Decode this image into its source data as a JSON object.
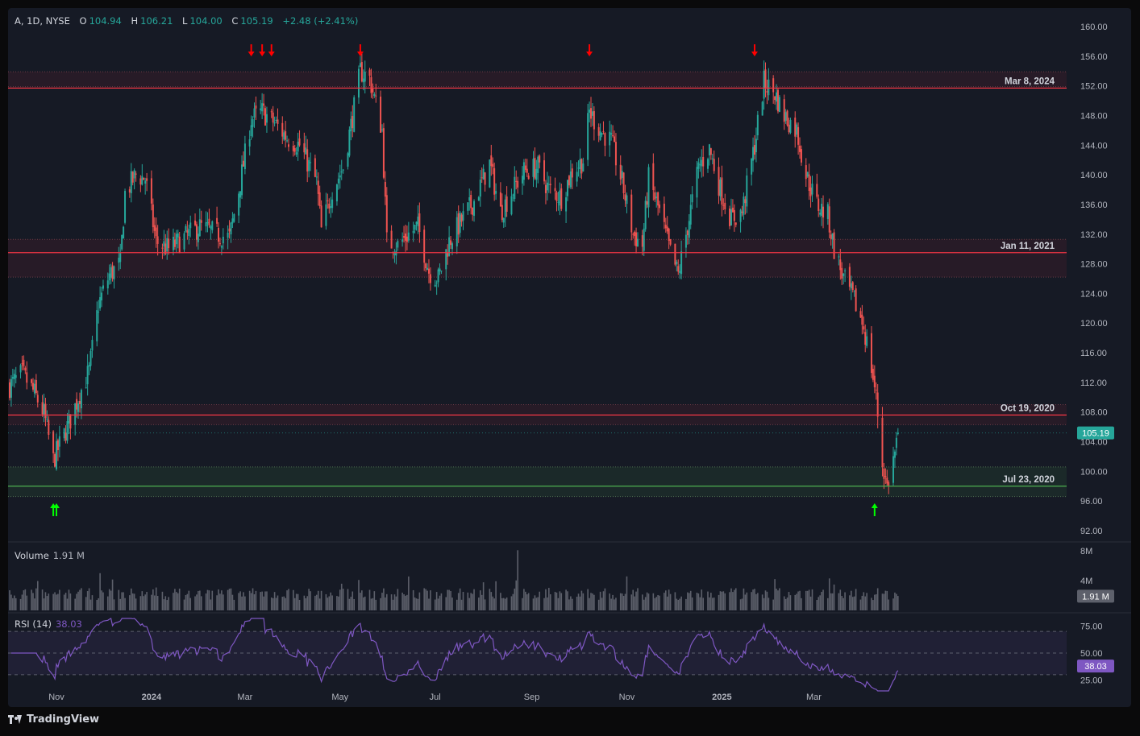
{
  "legend": {
    "symbol": "A, 1D, NYSE",
    "open_label": "O",
    "open": "104.94",
    "high_label": "H",
    "high": "106.21",
    "low_label": "L",
    "low": "104.00",
    "close_label": "C",
    "close": "105.19",
    "change": "+2.48 (+2.41%)"
  },
  "volume_legend": {
    "label": "Volume",
    "value": "1.91 M"
  },
  "rsi_legend": {
    "label": "RSI (14)",
    "value": "38.03"
  },
  "brand": "TradingView",
  "colors": {
    "up": "#26a69a",
    "down": "#ef5350",
    "resistance": "#f23645",
    "support": "#4caf50",
    "rsi": "#7e57c2",
    "arrow_down": "#ff0000",
    "arrow_up": "#00ff00"
  },
  "chart_data": [
    {
      "type": "candlestick",
      "ylim": [
        92,
        160
      ],
      "y_ticks": [
        "160.00",
        "156.00",
        "152.00",
        "148.00",
        "144.00",
        "140.00",
        "136.00",
        "132.00",
        "128.00",
        "124.00",
        "120.00",
        "116.00",
        "112.00",
        "108.00",
        "104.00",
        "100.00",
        "96.00",
        "92.00"
      ],
      "x_ticks": [
        "Nov",
        "2024",
        "Mar",
        "May",
        "Jul",
        "Sep",
        "Nov",
        "2025",
        "Mar"
      ],
      "last_price": "105.19",
      "levels": [
        {
          "label": "Mar 8, 2024",
          "price": 151.7,
          "zone": [
            151.9,
            153.9
          ],
          "kind": "resistance"
        },
        {
          "label": "Jan 11, 2021",
          "price": 129.5,
          "zone": [
            126.2,
            131.3
          ],
          "kind": "resistance"
        },
        {
          "label": "Oct 19, 2020",
          "price": 107.6,
          "zone": [
            106.3,
            109.0
          ],
          "kind": "resistance"
        },
        {
          "label": "Jul 23, 2020",
          "price": 98.0,
          "zone": [
            96.6,
            100.6
          ],
          "kind": "support"
        }
      ],
      "down_arrows": [
        "2024-03-05",
        "2024-03-12",
        "2024-03-18",
        "2024-05-14",
        "2024-10-08",
        "2025-01-22"
      ],
      "up_arrows": [
        "2023-10-30",
        "2023-11-01",
        "2025-04-09"
      ],
      "path": [
        {
          "date": "2023-10-02",
          "price": 111.5
        },
        {
          "date": "2023-10-10",
          "price": 113.2
        },
        {
          "date": "2023-10-18",
          "price": 110.5
        },
        {
          "date": "2023-10-24",
          "price": 107.8
        },
        {
          "date": "2023-10-30",
          "price": 101.5
        },
        {
          "date": "2023-11-03",
          "price": 103.5
        },
        {
          "date": "2023-11-10",
          "price": 107.0
        },
        {
          "date": "2023-11-16",
          "price": 110.5
        },
        {
          "date": "2023-11-22",
          "price": 113.5
        },
        {
          "date": "2023-11-28",
          "price": 122.5
        },
        {
          "date": "2023-12-05",
          "price": 126.5
        },
        {
          "date": "2023-12-12",
          "price": 128.0
        },
        {
          "date": "2023-12-15",
          "price": 137.5
        },
        {
          "date": "2023-12-22",
          "price": 140.0
        },
        {
          "date": "2023-12-28",
          "price": 139.5
        },
        {
          "date": "2024-01-04",
          "price": 131.0
        },
        {
          "date": "2024-01-12",
          "price": 130.0
        },
        {
          "date": "2024-01-22",
          "price": 131.5
        },
        {
          "date": "2024-02-01",
          "price": 133.0
        },
        {
          "date": "2024-02-12",
          "price": 132.0
        },
        {
          "date": "2024-02-20",
          "price": 131.5
        },
        {
          "date": "2024-02-27",
          "price": 139.0
        },
        {
          "date": "2024-03-05",
          "price": 147.5
        },
        {
          "date": "2024-03-12",
          "price": 148.5
        },
        {
          "date": "2024-03-20",
          "price": 147.0
        },
        {
          "date": "2024-03-28",
          "price": 145.0
        },
        {
          "date": "2024-04-05",
          "price": 144.0
        },
        {
          "date": "2024-04-16",
          "price": 139.0
        },
        {
          "date": "2024-04-19",
          "price": 132.5
        },
        {
          "date": "2024-04-26",
          "price": 138.0
        },
        {
          "date": "2024-05-03",
          "price": 141.0
        },
        {
          "date": "2024-05-10",
          "price": 149.0
        },
        {
          "date": "2024-05-14",
          "price": 154.0
        },
        {
          "date": "2024-05-20",
          "price": 153.0
        },
        {
          "date": "2024-05-28",
          "price": 146.0
        },
        {
          "date": "2024-05-31",
          "price": 131.0
        },
        {
          "date": "2024-06-07",
          "price": 130.5
        },
        {
          "date": "2024-06-14",
          "price": 132.0
        },
        {
          "date": "2024-06-20",
          "price": 133.0
        },
        {
          "date": "2024-06-27",
          "price": 127.0
        },
        {
          "date": "2024-07-03",
          "price": 126.0
        },
        {
          "date": "2024-07-10",
          "price": 131.0
        },
        {
          "date": "2024-07-17",
          "price": 133.5
        },
        {
          "date": "2024-07-26",
          "price": 136.5
        },
        {
          "date": "2024-08-05",
          "price": 141.5
        },
        {
          "date": "2024-08-12",
          "price": 135.0
        },
        {
          "date": "2024-08-20",
          "price": 138.0
        },
        {
          "date": "2024-08-27",
          "price": 140.5
        },
        {
          "date": "2024-09-05",
          "price": 141.0
        },
        {
          "date": "2024-09-12",
          "price": 138.0
        },
        {
          "date": "2024-09-20",
          "price": 137.0
        },
        {
          "date": "2024-09-27",
          "price": 140.5
        },
        {
          "date": "2024-10-04",
          "price": 142.0
        },
        {
          "date": "2024-10-08",
          "price": 148.5
        },
        {
          "date": "2024-10-15",
          "price": 146.0
        },
        {
          "date": "2024-10-22",
          "price": 144.5
        },
        {
          "date": "2024-10-29",
          "price": 139.0
        },
        {
          "date": "2024-11-05",
          "price": 132.0
        },
        {
          "date": "2024-11-11",
          "price": 130.5
        },
        {
          "date": "2024-11-15",
          "price": 139.5
        },
        {
          "date": "2024-11-22",
          "price": 135.0
        },
        {
          "date": "2024-11-29",
          "price": 129.5
        },
        {
          "date": "2024-12-04",
          "price": 126.5
        },
        {
          "date": "2024-12-10",
          "price": 133.0
        },
        {
          "date": "2024-12-17",
          "price": 141.0
        },
        {
          "date": "2024-12-24",
          "price": 143.5
        },
        {
          "date": "2024-12-31",
          "price": 138.0
        },
        {
          "date": "2025-01-07",
          "price": 134.0
        },
        {
          "date": "2025-01-14",
          "price": 135.0
        },
        {
          "date": "2025-01-22",
          "price": 144.0
        },
        {
          "date": "2025-01-28",
          "price": 152.5
        },
        {
          "date": "2025-02-04",
          "price": 151.0
        },
        {
          "date": "2025-02-10",
          "price": 148.0
        },
        {
          "date": "2025-02-18",
          "price": 146.0
        },
        {
          "date": "2025-02-24",
          "price": 140.0
        },
        {
          "date": "2025-03-03",
          "price": 136.0
        },
        {
          "date": "2025-03-10",
          "price": 134.5
        },
        {
          "date": "2025-03-14",
          "price": 130.0
        },
        {
          "date": "2025-03-20",
          "price": 126.0
        },
        {
          "date": "2025-03-27",
          "price": 123.0
        },
        {
          "date": "2025-04-02",
          "price": 119.5
        },
        {
          "date": "2025-04-07",
          "price": 114.0
        },
        {
          "date": "2025-04-10",
          "price": 110.0
        },
        {
          "date": "2025-04-14",
          "price": 101.0
        },
        {
          "date": "2025-04-17",
          "price": 98.0
        },
        {
          "date": "2025-04-22",
          "price": 102.5
        },
        {
          "date": "2025-04-24",
          "price": 105.19
        }
      ]
    },
    {
      "type": "bar",
      "title": "Volume",
      "y_ticks": [
        "8M",
        "4M"
      ],
      "last_value": "1.91 M",
      "ylim": [
        0,
        9000000
      ]
    },
    {
      "type": "line",
      "title": "RSI (14)",
      "y_ticks": [
        "75.00",
        "50.00",
        "25.00"
      ],
      "band": [
        30,
        70
      ],
      "ylim": [
        15,
        82
      ],
      "last_value": "38.03"
    }
  ]
}
